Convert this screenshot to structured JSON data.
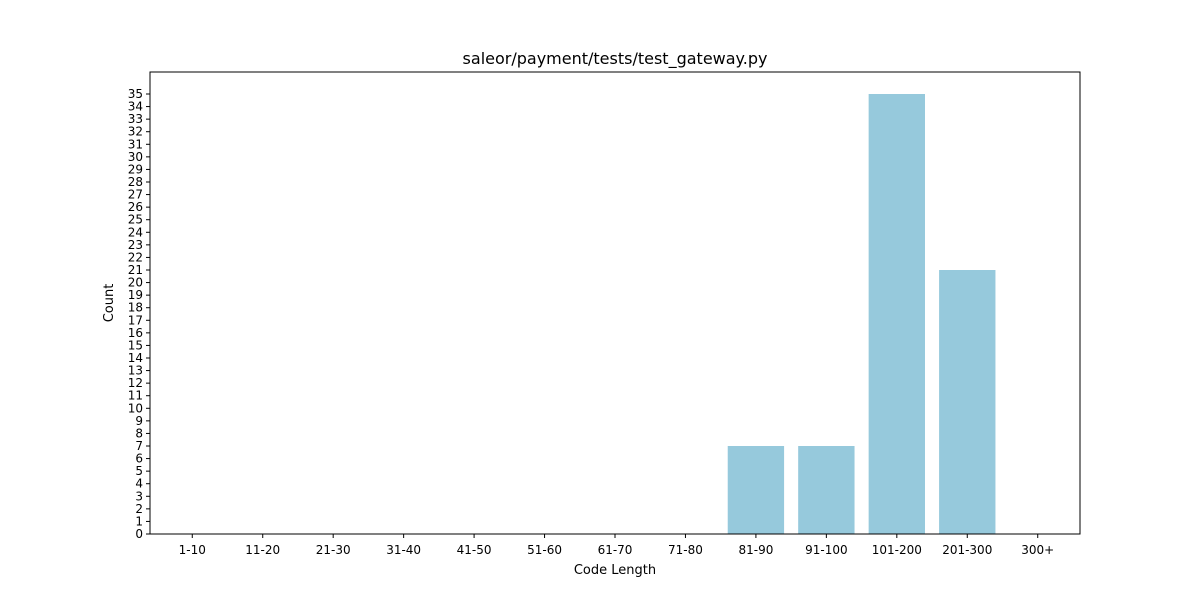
{
  "chart_data": {
    "type": "bar",
    "title": "saleor/payment/tests/test_gateway.py",
    "xlabel": "Code Length",
    "ylabel": "Count",
    "categories": [
      "1-10",
      "11-20",
      "21-30",
      "31-40",
      "41-50",
      "51-60",
      "61-70",
      "71-80",
      "81-90",
      "91-100",
      "101-200",
      "201-300",
      "300+"
    ],
    "values": [
      0,
      0,
      0,
      0,
      0,
      0,
      0,
      0,
      7,
      7,
      35,
      21,
      0
    ],
    "ylim": [
      0,
      36.75
    ],
    "yticks": [
      0,
      1,
      2,
      3,
      4,
      5,
      6,
      7,
      8,
      9,
      10,
      11,
      12,
      13,
      14,
      15,
      16,
      17,
      18,
      19,
      20,
      21,
      22,
      23,
      24,
      25,
      26,
      27,
      28,
      29,
      30,
      31,
      32,
      33,
      34,
      35
    ],
    "bar_color": "#96c9dc",
    "grid": false,
    "legend": "none"
  }
}
